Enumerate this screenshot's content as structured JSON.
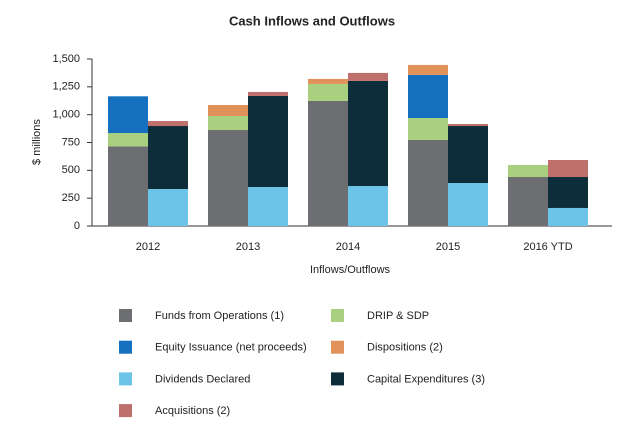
{
  "chart_data": {
    "type": "bar",
    "title": "Cash Inflows and Outflows",
    "x_label": "Inflows/Outflows",
    "y_label": "$ millions",
    "categories": [
      "2012",
      "2013",
      "2014",
      "2015",
      "2016 YTD"
    ],
    "series": [
      {
        "name": "Funds from Operations (1)",
        "color": "#6d6e71",
        "group": 0,
        "values": [
          715,
          862,
          1123,
          773,
          440
        ]
      },
      {
        "name": "DRIP & SDP",
        "color": "#a9d07e",
        "group": 0,
        "values": [
          120,
          126,
          153,
          197,
          108
        ]
      },
      {
        "name": "Equity Issuance (net proceeds)",
        "color": "#1570c0",
        "group": 0,
        "values": [
          330,
          null,
          null,
          387,
          null
        ]
      },
      {
        "name": "Dispositions (2)",
        "color": "#e0925a",
        "group": 0,
        "values": [
          null,
          99,
          45,
          90,
          null
        ]
      },
      {
        "name": "Dividends Declared",
        "color": "#6cc5e8",
        "group": 1,
        "values": [
          332,
          350,
          359,
          386,
          162
        ]
      },
      {
        "name": "Capital Expenditures (3)",
        "color": "#0d2d3a",
        "group": 1,
        "values": [
          566,
          818,
          944,
          512,
          278
        ]
      },
      {
        "name": "Acquisitions (2)",
        "color": "#c0706c",
        "group": 1,
        "values": [
          45,
          36,
          72,
          18,
          153
        ]
      }
    ],
    "ylim": [
      0,
      1500
    ],
    "yticks": [
      0,
      250,
      500,
      750,
      {
        "value": 1000,
        "label": "1,000"
      },
      {
        "value": 1250,
        "label": "1,250"
      },
      {
        "value": 1500,
        "label": "1,500"
      }
    ],
    "grid": false
  }
}
